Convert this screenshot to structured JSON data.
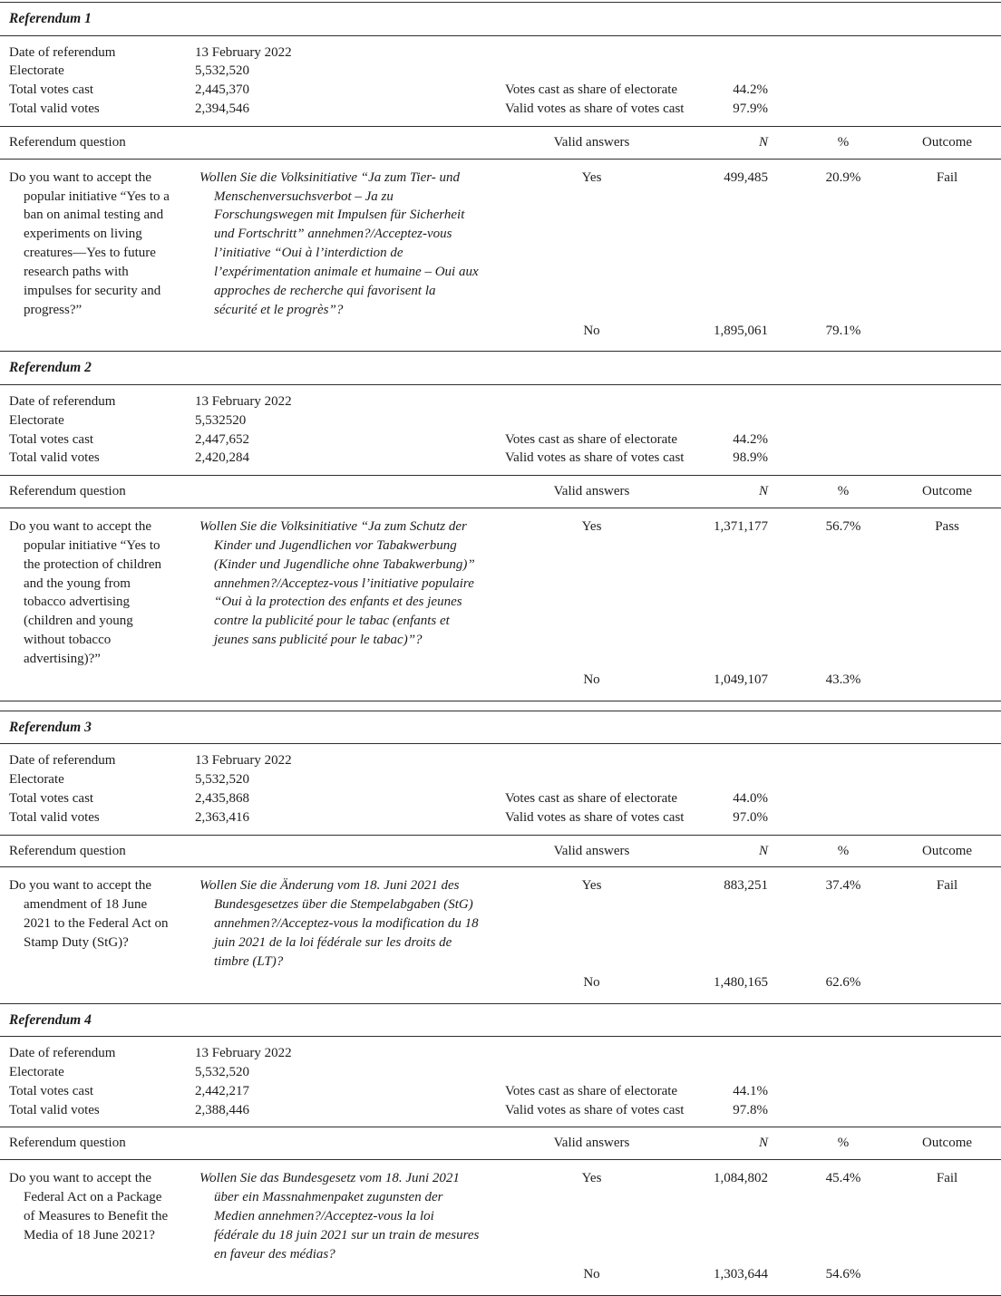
{
  "page": {
    "background": "#ffffff",
    "text_color": "#1c1c1c",
    "rule_color": "#2e2e2e"
  },
  "labels": {
    "date": "Date of referendum",
    "electorate": "Electorate",
    "total_votes_cast": "Total votes cast",
    "total_valid_votes": "Total valid votes",
    "votes_cast_share": "Votes cast as share of electorate",
    "valid_votes_share": "Valid votes as share of votes cast",
    "question": "Referendum question",
    "valid_answers": "Valid answers",
    "n": "N",
    "pct": "%",
    "outcome": "Outcome",
    "yes": "Yes",
    "no": "No"
  },
  "referendums": [
    {
      "title": "Referendum 1",
      "date": "13 February 2022",
      "electorate": "5,532,520",
      "total_votes_cast": "2,445,370",
      "total_valid_votes": "2,394,546",
      "votes_cast_share": "44.2%",
      "valid_votes_share": "97.9%",
      "question_en": "Do you want to accept the popular initiative “Yes to a ban on animal testing and experiments on living creatures—Yes to future research paths with impulses for security and progress?”",
      "question_original": "Wollen Sie die Volksinitiative “Ja zum Tier- und Menschenversuchsverbot – Ja zu Forschungswegen mit Impulsen für Sicherheit und Fortschritt” annehmen?/Acceptez-vous l’initiative “Oui à l’interdiction de l’expérimentation animale et humaine – Oui aux approches de recherche qui favorisent la sécurité et le progrès”?",
      "yes_n": "499,485",
      "yes_pct": "20.9%",
      "outcome": "Fail",
      "no_n": "1,895,061",
      "no_pct": "79.1%"
    },
    {
      "title": "Referendum 2",
      "date": "13 February 2022",
      "electorate": "5,532520",
      "total_votes_cast": "2,447,652",
      "total_valid_votes": "2,420,284",
      "votes_cast_share": "44.2%",
      "valid_votes_share": "98.9%",
      "question_en": "Do you want to accept the popular initiative “Yes to the protection of children and the young from tobacco advertising (children and young without tobacco advertising)?”",
      "question_original": "Wollen Sie die Volksinitiative “Ja zum Schutz der Kinder und Jugendlichen vor Tabakwerbung (Kinder und Jugendliche ohne Tabakwerbung)” annehmen?/Acceptez-vous l’initiative populaire “Oui à la protection des enfants et des jeunes contre la publicité pour le tabac (enfants et jeunes sans publicité pour le tabac)”?",
      "yes_n": "1,371,177",
      "yes_pct": "56.7%",
      "outcome": "Pass",
      "no_n": "1,049,107",
      "no_pct": "43.3%"
    },
    {
      "title": "Referendum 3",
      "date": "13 February 2022",
      "electorate": "5,532,520",
      "total_votes_cast": "2,435,868",
      "total_valid_votes": "2,363,416",
      "votes_cast_share": "44.0%",
      "valid_votes_share": "97.0%",
      "question_en": "Do you want to accept the amendment of 18 June 2021 to the Federal Act on Stamp Duty (StG)?",
      "question_original": "Wollen Sie die Änderung vom 18. Juni 2021 des Bundesgesetzes über die Stempelabgaben (StG) annehmen?/Acceptez-vous la modification du 18 juin 2021 de la loi fédérale sur les droits de timbre (LT)?",
      "yes_n": "883,251",
      "yes_pct": "37.4%",
      "outcome": "Fail",
      "no_n": "1,480,165",
      "no_pct": "62.6%"
    },
    {
      "title": "Referendum 4",
      "date": "13 February 2022",
      "electorate": "5,532,520",
      "total_votes_cast": "2,442,217",
      "total_valid_votes": "2,388,446",
      "votes_cast_share": "44.1%",
      "valid_votes_share": "97.8%",
      "question_en": "Do you want to accept the Federal Act on a Package of Measures to Benefit the Media of 18 June 2021?",
      "question_original": "Wollen Sie das Bundesgesetz vom 18. Juni 2021 über ein Massnahmenpaket zugunsten der Medien annehmen?/Acceptez-vous la loi fédérale du 18 juin 2021 sur un train de mesures en faveur des médias?",
      "yes_n": "1,084,802",
      "yes_pct": "45.4%",
      "outcome": "Fail",
      "no_n": "1,303,644",
      "no_pct": "54.6%"
    }
  ]
}
